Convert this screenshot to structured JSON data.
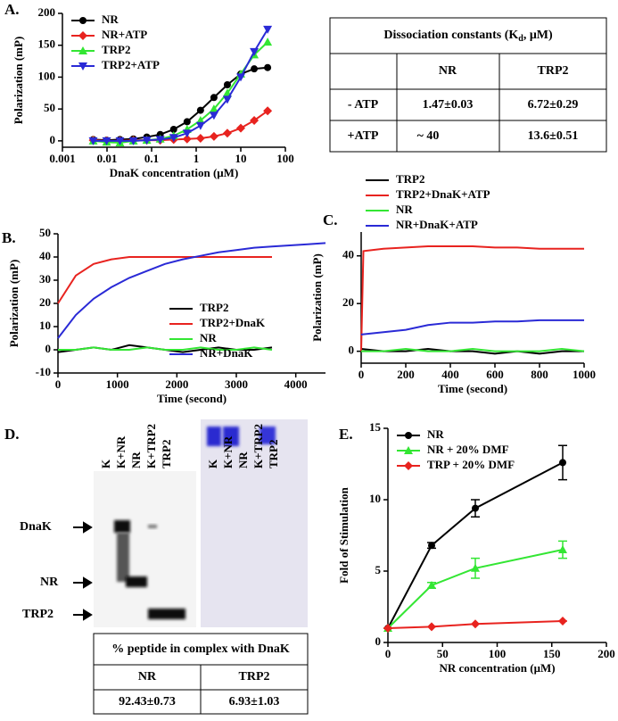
{
  "chart_data": [
    {
      "type": "line",
      "panel": "A.",
      "xlabel": "DnaK concentration (μM)",
      "ylabel": "Polarization (mP)",
      "xscale": "log",
      "xlim": [
        0.001,
        100
      ],
      "xticks": [
        0.001,
        0.01,
        0.1,
        1,
        10,
        100
      ],
      "ylim": [
        -10,
        200
      ],
      "yticks": [
        0,
        50,
        100,
        150,
        200
      ],
      "legend": "upper left",
      "series": [
        {
          "name": "NR",
          "color": "#000000",
          "marker": "circle",
          "x": [
            0.0049,
            0.0098,
            0.0195,
            0.039,
            0.078,
            0.156,
            0.3125,
            0.625,
            1.25,
            2.5,
            5,
            10,
            20,
            40
          ],
          "values": [
            2,
            1,
            2,
            3,
            6,
            10,
            18,
            30,
            48,
            68,
            88,
            105,
            113,
            115
          ]
        },
        {
          "name": "NR+ATP",
          "color": "#e8231f",
          "marker": "diamond",
          "x": [
            0.0049,
            0.0098,
            0.0195,
            0.039,
            0.078,
            0.156,
            0.3125,
            0.625,
            1.25,
            2.5,
            5,
            10,
            20,
            40
          ],
          "values": [
            1,
            0,
            0,
            1,
            1,
            1,
            2,
            3,
            4,
            7,
            12,
            20,
            32,
            47
          ]
        },
        {
          "name": "TRP2",
          "color": "#33e633",
          "marker": "triangle-up",
          "x": [
            0.0049,
            0.0098,
            0.0195,
            0.039,
            0.078,
            0.156,
            0.3125,
            0.625,
            1.25,
            2.5,
            5,
            10,
            20,
            40
          ],
          "values": [
            0,
            -2,
            -3,
            0,
            1,
            3,
            8,
            18,
            32,
            50,
            75,
            105,
            135,
            155
          ]
        },
        {
          "name": "TRP2+ATP",
          "color": "#2a2ad6",
          "marker": "triangle-down",
          "x": [
            0.0049,
            0.0098,
            0.0195,
            0.039,
            0.078,
            0.156,
            0.3125,
            0.625,
            1.25,
            2.5,
            5,
            10,
            20,
            40
          ],
          "values": [
            0,
            0,
            0,
            0,
            1,
            2,
            5,
            12,
            24,
            40,
            65,
            100,
            140,
            175
          ]
        }
      ]
    },
    {
      "type": "line",
      "panel": "B.",
      "xlabel": "Time (second)",
      "ylabel": "Polarization (mP)",
      "xlim": [
        0,
        4500
      ],
      "xticks": [
        0,
        1000,
        2000,
        3000,
        4000
      ],
      "ylim": [
        -10,
        50
      ],
      "yticks": [
        -10,
        0,
        10,
        20,
        30,
        40,
        50
      ],
      "legend": "lower right",
      "series": [
        {
          "name": "TRP2",
          "color": "#000000",
          "x": [
            0,
            300,
            600,
            900,
            1200,
            1500,
            1800,
            2100,
            2400,
            2700,
            3000,
            3300,
            3600
          ],
          "values": [
            -1,
            0,
            1,
            0,
            2,
            1,
            0,
            -1,
            0,
            1,
            0,
            0,
            1
          ]
        },
        {
          "name": "TRP2+DnaK",
          "color": "#e8231f",
          "x": [
            0,
            300,
            600,
            900,
            1200,
            1500,
            1800,
            2100,
            2400,
            2700,
            3000,
            3300,
            3600
          ],
          "values": [
            20,
            32,
            37,
            39,
            40,
            40,
            40,
            40,
            40,
            40,
            40,
            40,
            40
          ]
        },
        {
          "name": "NR",
          "color": "#33e633",
          "x": [
            0,
            300,
            600,
            900,
            1200,
            1500,
            1800,
            2100,
            2400,
            2700,
            3000,
            3300,
            3600
          ],
          "values": [
            0,
            0,
            1,
            0,
            0,
            1,
            0,
            0,
            1,
            0,
            0,
            1,
            0
          ]
        },
        {
          "name": "NR+DnaK",
          "color": "#2a2ad6",
          "x": [
            0,
            300,
            600,
            900,
            1200,
            1500,
            1800,
            2100,
            2400,
            2700,
            3000,
            3300,
            3600,
            3900,
            4200,
            4500
          ],
          "values": [
            5,
            15,
            22,
            27,
            31,
            34,
            37,
            39,
            40.5,
            42,
            43,
            44,
            44.5,
            45,
            45.5,
            46
          ]
        }
      ]
    },
    {
      "type": "line",
      "panel": "C.",
      "xlabel": "Time (second)",
      "ylabel": "Polarization (mP)",
      "xlim": [
        0,
        1000
      ],
      "xticks": [
        0,
        200,
        400,
        600,
        800,
        1000
      ],
      "ylim": [
        -5,
        50
      ],
      "yticks": [
        0,
        20,
        40
      ],
      "legend": "outside top",
      "series": [
        {
          "name": "TRP2",
          "color": "#000000",
          "x": [
            0,
            100,
            200,
            300,
            400,
            500,
            600,
            700,
            800,
            900,
            1000
          ],
          "values": [
            1,
            0,
            0,
            1,
            0,
            0,
            -1,
            0,
            -1,
            0,
            0
          ]
        },
        {
          "name": "TRP2+DnaK+ATP",
          "color": "#e8231f",
          "x": [
            0,
            10,
            100,
            200,
            300,
            400,
            500,
            600,
            700,
            800,
            900,
            1000
          ],
          "values": [
            0,
            42,
            43,
            43.5,
            44,
            44,
            44,
            43.5,
            43.5,
            43,
            43,
            43
          ]
        },
        {
          "name": "NR",
          "color": "#33e633",
          "x": [
            0,
            100,
            200,
            300,
            400,
            500,
            600,
            700,
            800,
            900,
            1000
          ],
          "values": [
            0,
            0,
            1,
            0,
            0,
            1,
            0,
            0,
            0,
            1,
            0
          ]
        },
        {
          "name": "NR+DnaK+ATP",
          "color": "#2a2ad6",
          "x": [
            0,
            100,
            200,
            300,
            400,
            500,
            600,
            700,
            800,
            900,
            1000
          ],
          "values": [
            7,
            8,
            9,
            11,
            12,
            12,
            12.5,
            12.5,
            13,
            13,
            13
          ]
        }
      ]
    },
    {
      "type": "line",
      "panel": "E.",
      "xlabel": "NR concentration (μM)",
      "ylabel": "Fold of Stimulation",
      "xlim": [
        0,
        200
      ],
      "xticks": [
        0,
        50,
        100,
        150,
        200
      ],
      "ylim": [
        0,
        15
      ],
      "yticks": [
        0,
        5,
        10,
        15
      ],
      "legend": "upper left",
      "series": [
        {
          "name": "NR",
          "color": "#000000",
          "marker": "circle",
          "x": [
            0,
            40,
            80,
            160
          ],
          "values": [
            1,
            6.8,
            9.4,
            12.6
          ],
          "errors": [
            0,
            0.2,
            0.6,
            1.2
          ]
        },
        {
          "name": "NR + 20% DMF",
          "color": "#33e633",
          "marker": "triangle-up",
          "x": [
            0,
            40,
            80,
            160
          ],
          "values": [
            1,
            4,
            5.2,
            6.5
          ],
          "errors": [
            0,
            0.2,
            0.7,
            0.6
          ]
        },
        {
          "name": "TRP + 20% DMF",
          "color": "#e8231f",
          "marker": "diamond",
          "x": [
            0,
            40,
            80,
            160
          ],
          "values": [
            1,
            1.1,
            1.3,
            1.5
          ],
          "errors": [
            0,
            0,
            0,
            0
          ]
        }
      ]
    }
  ],
  "table_a": {
    "title": {
      "text": "Dissociation constants (K",
      "sub": "d",
      "tail": ", μM)"
    },
    "columns": [
      "NR",
      "TRP2"
    ],
    "rows": [
      {
        "label": "- ATP",
        "values": [
          "1.47±0.03",
          "6.72±0.29"
        ]
      },
      {
        "label": "+ATP",
        "values": [
          "~ 40",
          "13.6±0.51"
        ]
      }
    ]
  },
  "gel": {
    "panel": "D.",
    "lanes": [
      "K",
      "K+NR",
      "NR",
      "K+TRP2",
      "TRP2"
    ],
    "markers": [
      "DnaK",
      "NR",
      "TRP2"
    ]
  },
  "table_d": {
    "title": "% peptide in complex with DnaK",
    "columns": [
      "NR",
      "TRP2"
    ],
    "values": [
      "92.43±0.73",
      "6.93±1.03"
    ]
  }
}
